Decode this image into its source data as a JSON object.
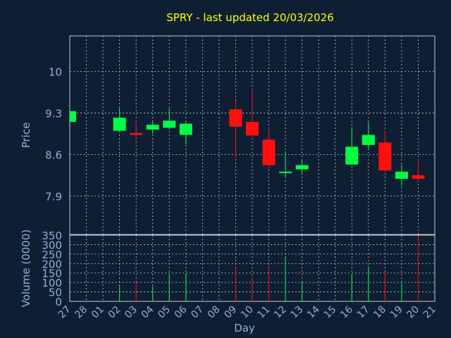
{
  "colors": {
    "background": "#0f1f33",
    "title": "#ffff00",
    "text": "#8fb0d8",
    "grid": "#c8c8c8",
    "up": "#00ff44",
    "down": "#ff1010"
  },
  "chart_data": {
    "type": "candlestick",
    "title": "SPRY - last updated 20/03/2026",
    "xlabel": "Day",
    "ylabel": "Price",
    "volume_label": "Volume (0000)",
    "grid": true,
    "x_ticks": [
      "27",
      "28",
      "01",
      "02",
      "03",
      "04",
      "05",
      "06",
      "07",
      "08",
      "09",
      "10",
      "11",
      "12",
      "13",
      "14",
      "15",
      "16",
      "17",
      "18",
      "19",
      "20",
      "21"
    ],
    "price_ticks": [
      "7.9",
      "8.6",
      "9.3",
      "10"
    ],
    "price_ylim": [
      7.25,
      10.6
    ],
    "volume_ticks": [
      "0",
      "50",
      "100",
      "150",
      "200",
      "250",
      "300",
      "350"
    ],
    "volume_ylim": [
      0,
      350
    ],
    "series": [
      {
        "day": "27",
        "open": 9.15,
        "close": 9.33,
        "high": 9.33,
        "low": 9.15,
        "volume": 0
      },
      {
        "day": "02",
        "open": 9.0,
        "close": 9.22,
        "high": 9.38,
        "low": 8.97,
        "volume": 80
      },
      {
        "day": "03",
        "open": 8.96,
        "close": 8.93,
        "high": 9.13,
        "low": 8.85,
        "volume": 100
      },
      {
        "day": "04",
        "open": 9.02,
        "close": 9.1,
        "high": 9.15,
        "low": 8.95,
        "volume": 80
      },
      {
        "day": "05",
        "open": 9.05,
        "close": 9.17,
        "high": 9.38,
        "low": 9.02,
        "volume": 140
      },
      {
        "day": "06",
        "open": 8.93,
        "close": 9.12,
        "high": 9.15,
        "low": 8.77,
        "volume": 150
      },
      {
        "day": "09",
        "open": 9.36,
        "close": 9.07,
        "high": 9.5,
        "low": 8.55,
        "volume": 180
      },
      {
        "day": "10",
        "open": 9.15,
        "close": 8.92,
        "high": 9.68,
        "low": 8.9,
        "volume": 130
      },
      {
        "day": "11",
        "open": 8.85,
        "close": 8.42,
        "high": 9.02,
        "low": 8.35,
        "volume": 180
      },
      {
        "day": "12",
        "open": 8.29,
        "close": 8.31,
        "high": 8.65,
        "low": 8.22,
        "volume": 230
      },
      {
        "day": "13",
        "open": 8.35,
        "close": 8.42,
        "high": 8.52,
        "low": 8.28,
        "volume": 100
      },
      {
        "day": "16",
        "open": 8.43,
        "close": 8.73,
        "high": 9.03,
        "low": 8.43,
        "volume": 145
      },
      {
        "day": "17",
        "open": 8.76,
        "close": 8.93,
        "high": 9.14,
        "low": 8.67,
        "volume": 185
      },
      {
        "day": "18",
        "open": 8.8,
        "close": 8.33,
        "high": 9.0,
        "low": 8.33,
        "volume": 150
      },
      {
        "day": "19",
        "open": 8.19,
        "close": 8.31,
        "high": 8.43,
        "low": 8.06,
        "volume": 95
      },
      {
        "day": "20",
        "open": 8.25,
        "close": 8.19,
        "high": 8.53,
        "low": 8.15,
        "volume": 340
      }
    ]
  }
}
